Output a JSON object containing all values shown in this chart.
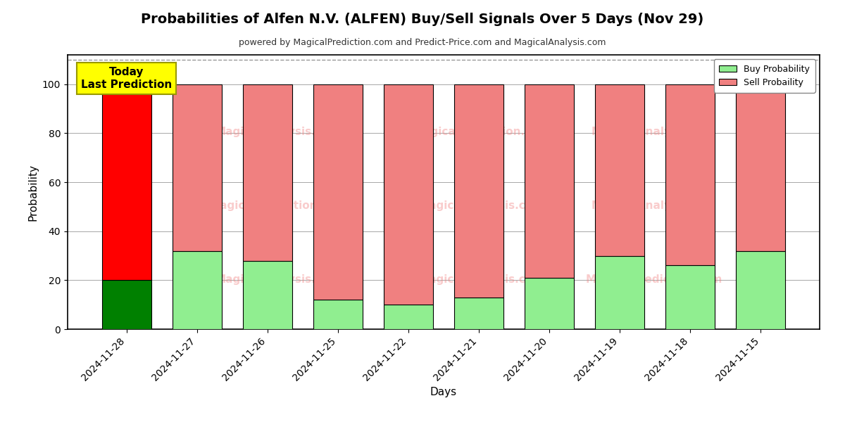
{
  "title": "Probabilities of Alfen N.V. (ALFEN) Buy/Sell Signals Over 5 Days (Nov 29)",
  "subtitle": "powered by MagicalPrediction.com and Predict-Price.com and MagicalAnalysis.com",
  "xlabel": "Days",
  "ylabel": "Probability",
  "categories": [
    "2024-11-28",
    "2024-11-27",
    "2024-11-26",
    "2024-11-25",
    "2024-11-22",
    "2024-11-21",
    "2024-11-20",
    "2024-11-19",
    "2024-11-18",
    "2024-11-15"
  ],
  "buy_values": [
    20,
    32,
    28,
    12,
    10,
    13,
    21,
    30,
    26,
    32
  ],
  "sell_values": [
    80,
    68,
    72,
    88,
    90,
    87,
    79,
    70,
    74,
    68
  ],
  "today_index": 0,
  "today_buy_color": "#008000",
  "today_sell_color": "#FF0000",
  "other_buy_color": "#90EE90",
  "other_sell_color": "#F08080",
  "today_label_bg": "#FFFF00",
  "today_label_text": "Today\nLast Prediction",
  "legend_buy": "Buy Probability",
  "legend_sell": "Sell Probaility",
  "ylim": [
    0,
    112
  ],
  "dashed_line_y": 110,
  "bar_edgecolor": "#000000",
  "bar_linewidth": 0.8,
  "background_color": "#ffffff",
  "grid_color": "#999999",
  "spine_color": "#000000",
  "watermark_rows": [
    0.72,
    0.45,
    0.18
  ],
  "watermark_cols": [
    0.28,
    0.55,
    0.78
  ]
}
